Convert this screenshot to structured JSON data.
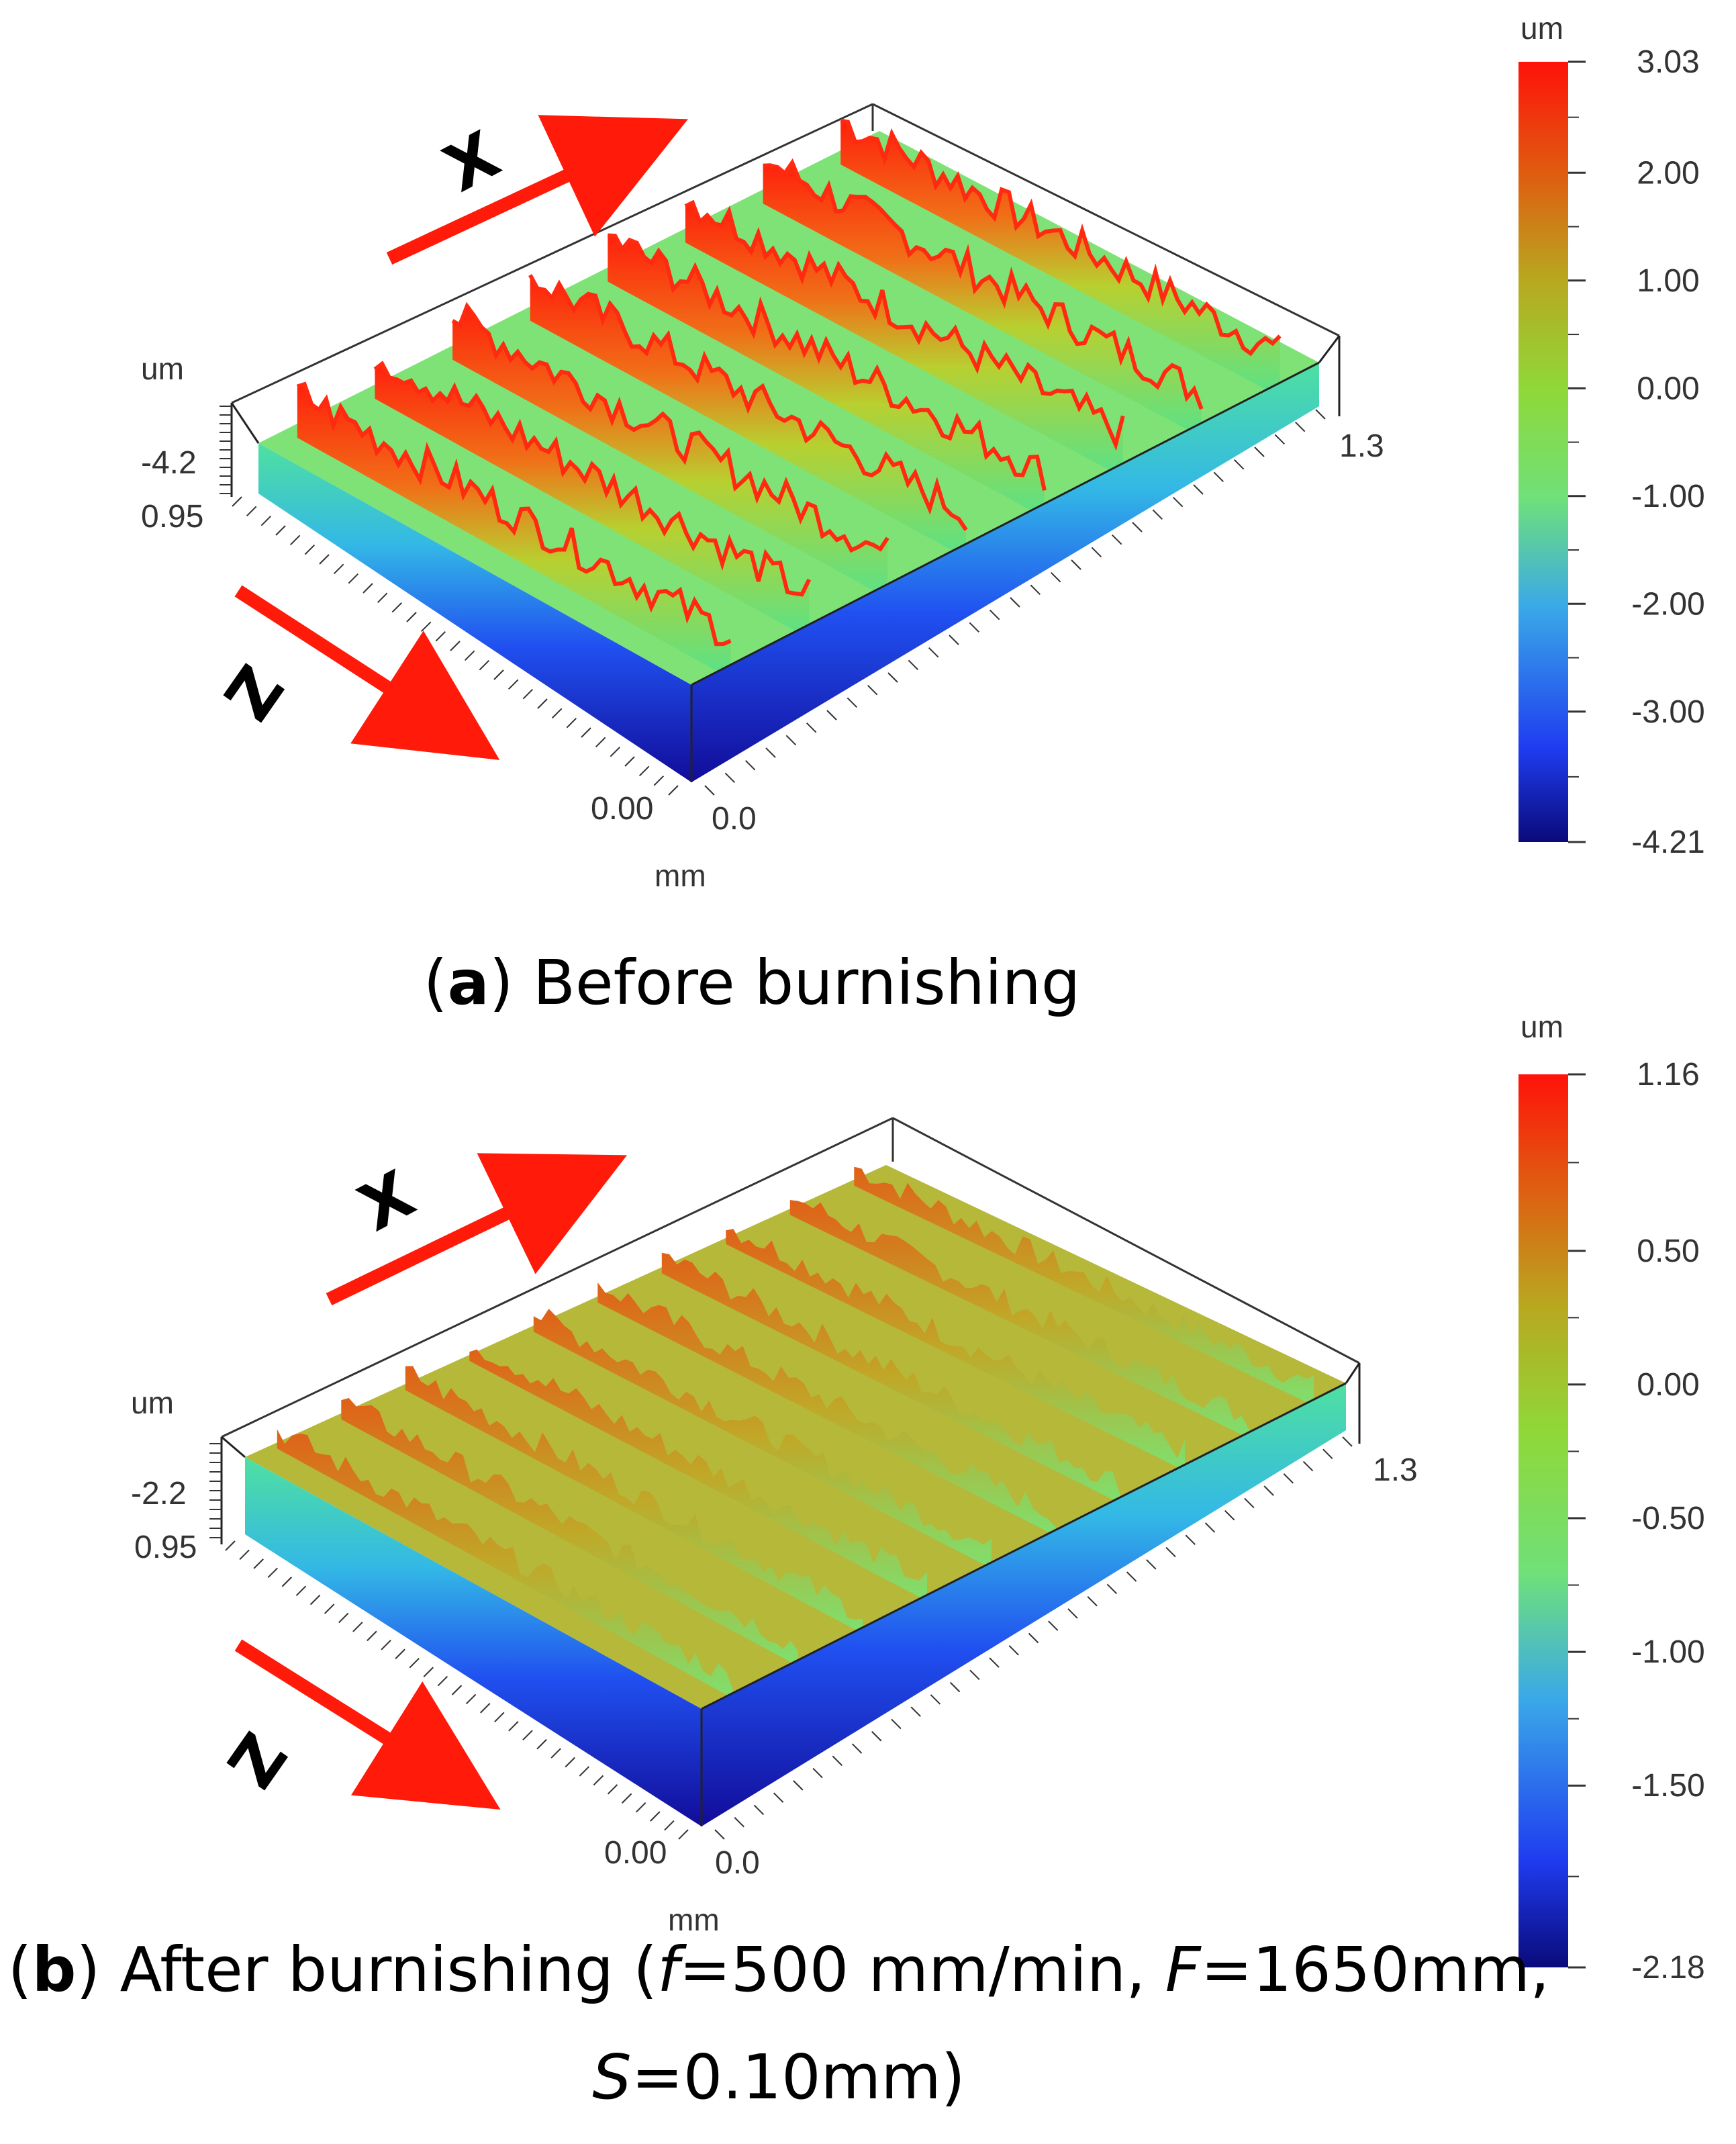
{
  "chart_data": [
    {
      "type": "heatmap",
      "subtype": "3d-surface",
      "panel_label": "a",
      "caption": "Before burnishing",
      "colorbar": {
        "unit": "um",
        "min": -4.21,
        "max": 3.03,
        "tick_labels": [
          "3.03",
          "2.00",
          "1.00",
          "0.00",
          "-1.00",
          "-2.00",
          "-3.00",
          "-4.21"
        ],
        "tick_values": [
          3.03,
          2.0,
          1.0,
          0.0,
          -1.0,
          -2.0,
          -3.0,
          -4.21
        ]
      },
      "axes": {
        "height_unit": "um",
        "height_label": "-4.2",
        "depth_label": "0.95",
        "origin_left_label": "0.00",
        "origin_right_label": "0.0",
        "width_label": "1.3",
        "length_unit": "mm"
      },
      "surface": {
        "ridges": 8,
        "peak": 3.03,
        "valley": -4.21
      },
      "direction_labels": {
        "x": "X",
        "z": "Z"
      }
    },
    {
      "type": "heatmap",
      "subtype": "3d-surface",
      "panel_label": "b",
      "caption_parts": [
        {
          "text": "After burnishing (",
          "style": "normal"
        },
        {
          "text": "f",
          "style": "italic"
        },
        {
          "text": "=500 mm/min, ",
          "style": "normal"
        },
        {
          "text": "F",
          "style": "italic"
        },
        {
          "text": "=1650mm,",
          "style": "normal"
        }
      ],
      "caption_line2_parts": [
        {
          "text": "S",
          "style": "italic"
        },
        {
          "text": "=0.10mm)",
          "style": "normal"
        }
      ],
      "colorbar": {
        "unit": "um",
        "min": -2.18,
        "max": 1.16,
        "tick_labels": [
          "1.16",
          "0.50",
          "0.00",
          "-0.50",
          "-1.00",
          "-1.50",
          "-2.18"
        ],
        "tick_values": [
          1.16,
          0.5,
          0.0,
          -0.5,
          -1.0,
          -1.5,
          -2.18
        ]
      },
      "axes": {
        "height_unit": "um",
        "height_label": "-2.2",
        "depth_label": "0.95",
        "origin_left_label": "0.00",
        "origin_right_label": "0.0",
        "width_label": "1.3",
        "length_unit": "mm"
      },
      "surface": {
        "ridges": 10,
        "peak": 1.16,
        "valley": -2.18
      },
      "direction_labels": {
        "x": "X",
        "z": "Z"
      }
    }
  ],
  "colors": {
    "red": "#ff1a0a",
    "orange": "#ff8a14",
    "yellow": "#c7c61a",
    "green": "#7ee65a",
    "cyan": "#36c8d8",
    "blue": "#2450f0",
    "navy": "#0a0a8a",
    "arrow": "#ff1a0a"
  }
}
